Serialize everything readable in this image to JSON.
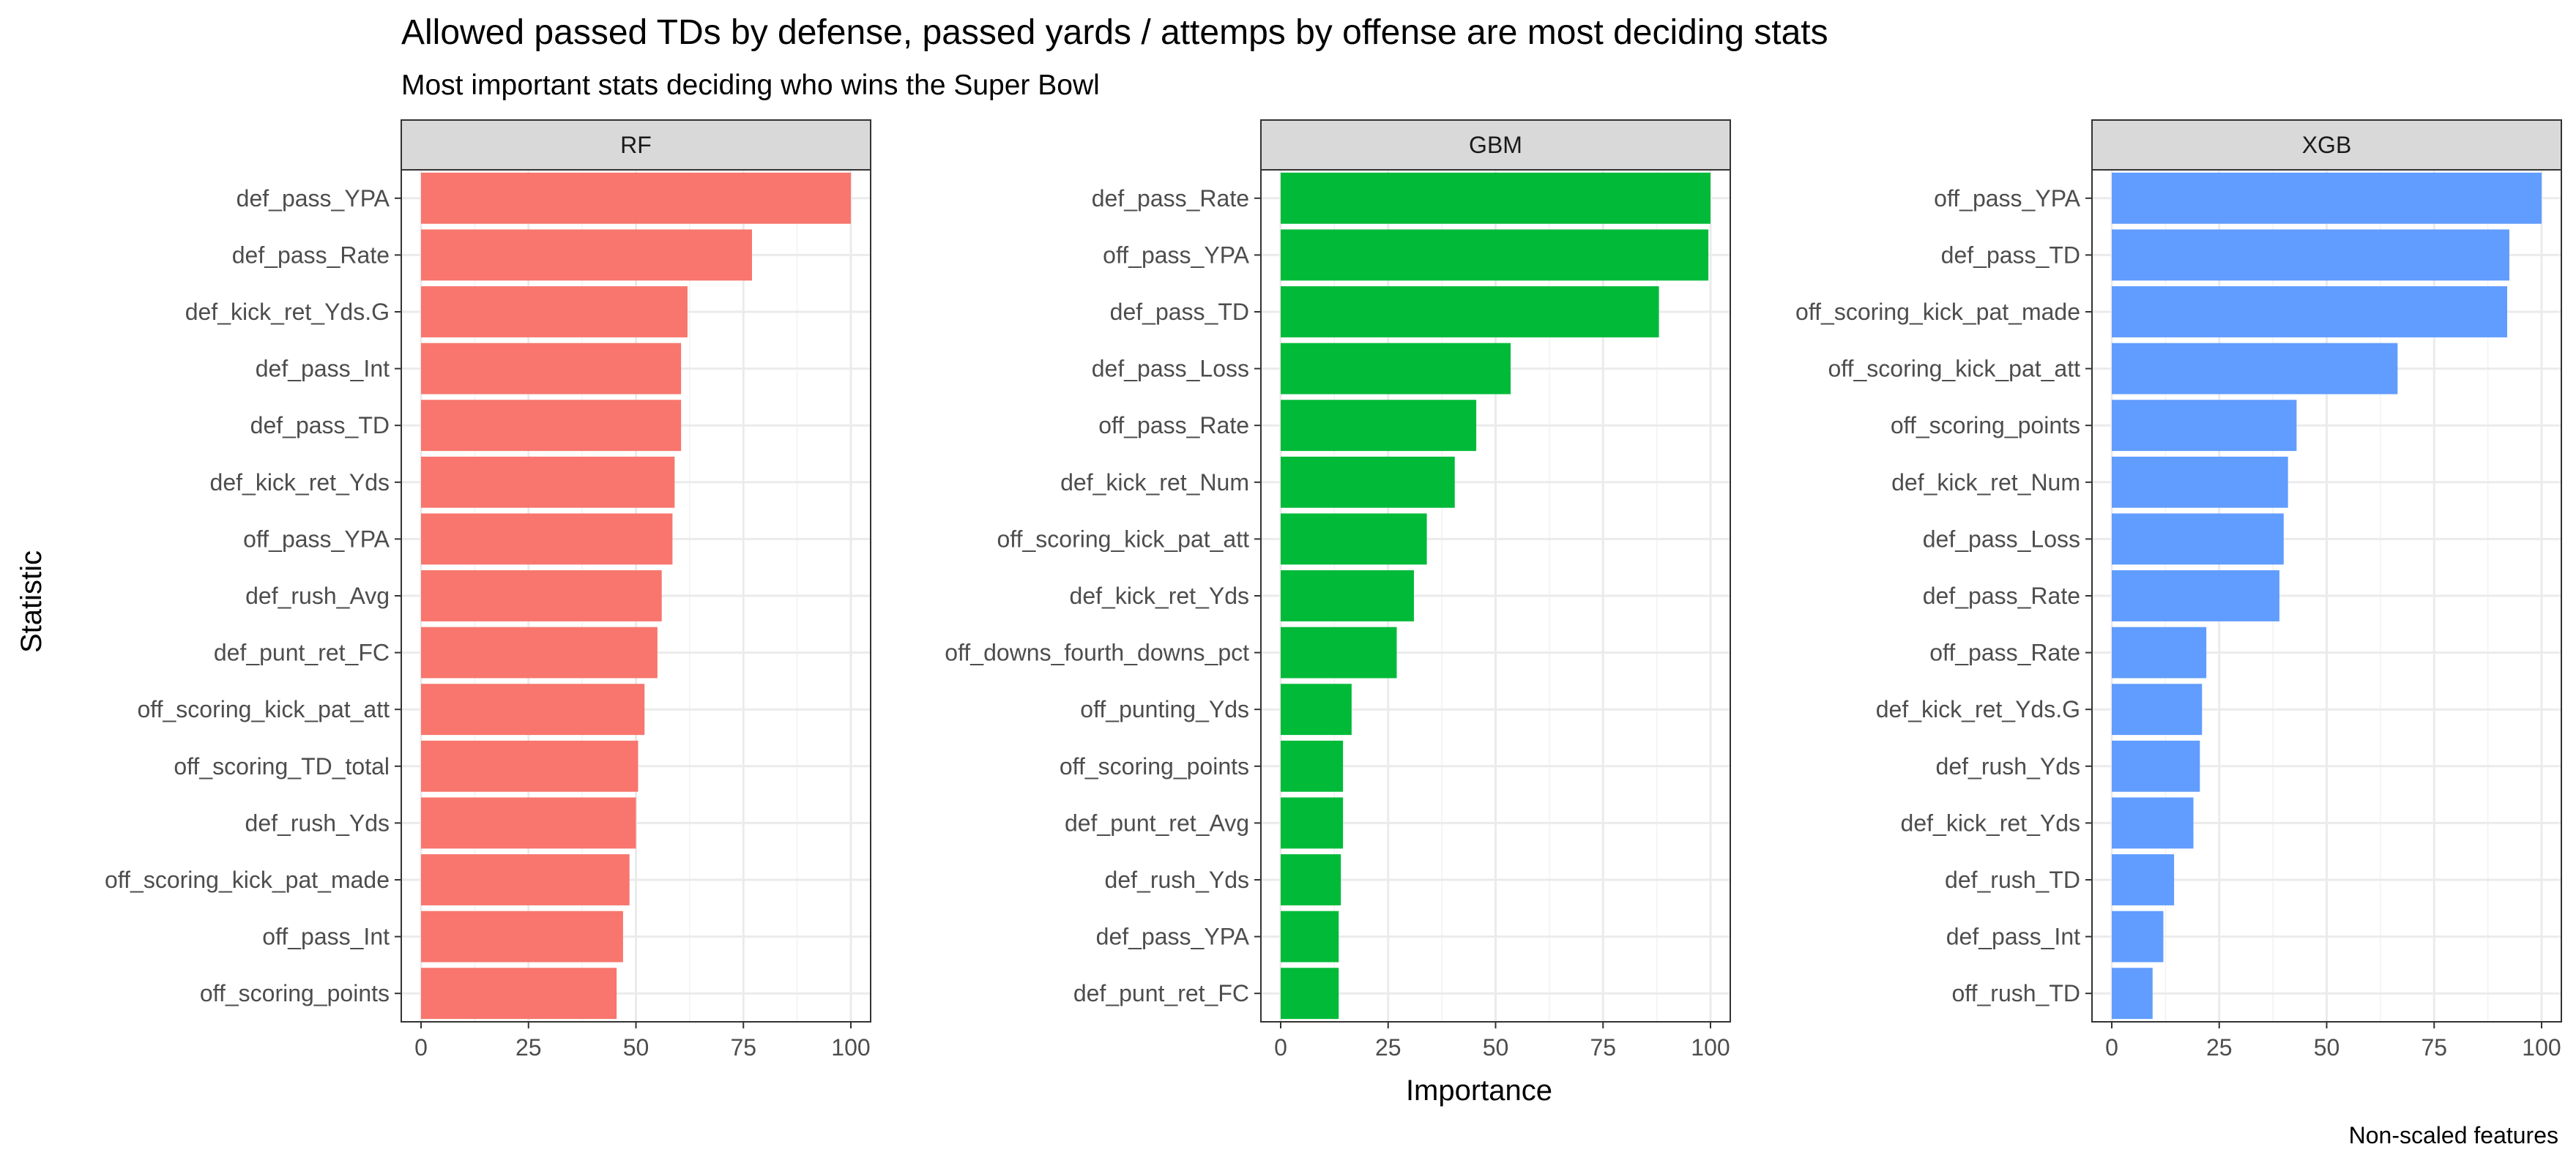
{
  "chart_data": {
    "type": "bar",
    "orientation": "horizontal",
    "title": "Allowed passed TDs by defense, passed yards / attemps by offense are most deciding stats",
    "subtitle": "Most important stats deciding who wins the Super Bowl",
    "xlabel": "Importance",
    "ylabel": "Statistic",
    "caption": "Non-scaled features",
    "xlim": [
      0,
      100
    ],
    "x_ticks": [
      0,
      25,
      50,
      75,
      100
    ],
    "grid": true,
    "legend": "none",
    "panels": [
      {
        "name": "RF",
        "color": "#F8766D",
        "categories": [
          "def_pass_YPA",
          "def_pass_Rate",
          "def_kick_ret_Yds.G",
          "def_pass_Int",
          "def_pass_TD",
          "def_kick_ret_Yds",
          "off_pass_YPA",
          "def_rush_Avg",
          "def_punt_ret_FC",
          "off_scoring_kick_pat_att",
          "off_scoring_TD_total",
          "def_rush_Yds",
          "off_scoring_kick_pat_made",
          "off_pass_Int",
          "off_scoring_points"
        ],
        "values": [
          100,
          77,
          62,
          60.5,
          60.5,
          59,
          58.5,
          56,
          55,
          52,
          50.5,
          50,
          48.5,
          47,
          45.5
        ]
      },
      {
        "name": "GBM",
        "color": "#00BA38",
        "categories": [
          "def_pass_Rate",
          "off_pass_YPA",
          "def_pass_TD",
          "def_pass_Loss",
          "off_pass_Rate",
          "def_kick_ret_Num",
          "off_scoring_kick_pat_att",
          "def_kick_ret_Yds",
          "off_downs_fourth_downs_pct",
          "off_punting_Yds",
          "off_scoring_points",
          "def_punt_ret_Avg",
          "def_rush_Yds",
          "def_pass_YPA",
          "def_punt_ret_FC"
        ],
        "values": [
          100,
          99.5,
          88,
          53.5,
          45.5,
          40.5,
          34,
          31,
          27,
          16.5,
          14.5,
          14.5,
          14,
          13.5,
          13.5
        ]
      },
      {
        "name": "XGB",
        "color": "#619CFF",
        "categories": [
          "off_pass_YPA",
          "def_pass_TD",
          "off_scoring_kick_pat_made",
          "off_scoring_kick_pat_att",
          "off_scoring_points",
          "def_kick_ret_Num",
          "def_pass_Loss",
          "def_pass_Rate",
          "off_pass_Rate",
          "def_kick_ret_Yds.G",
          "def_rush_Yds",
          "def_kick_ret_Yds",
          "def_rush_TD",
          "def_pass_Int",
          "off_rush_TD"
        ],
        "values": [
          100,
          92.5,
          92,
          66.5,
          43,
          41,
          40,
          39,
          22,
          21,
          20.5,
          19,
          14.5,
          12,
          9.5
        ]
      }
    ]
  }
}
